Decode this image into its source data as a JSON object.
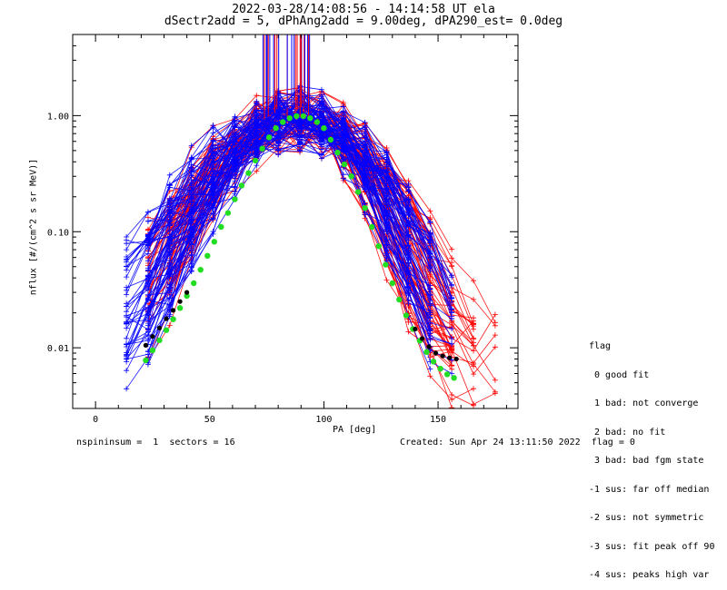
{
  "header": {
    "line1": "2022-03-28/14:08:56 - 14:14:58 UT ela",
    "line2": "dSectr2add = 5, dPhAng2add = 9.00deg, dPA290_est=   0.0deg"
  },
  "footer": {
    "left": "nspininsum =  1  sectors = 16",
    "right": "Created: Sun Apr 24 13:11:50 2022  flag = 0"
  },
  "flag_legend": {
    "title": "flag",
    "items": [
      " 0 good fit",
      " 1 bad: not converge",
      " 2 bad: no fit",
      " 3 bad: bad fgm state",
      "-1 sus: far off median",
      "-2 sus: not symmetric",
      "-3 sus: fit peak off 90",
      "-4 sus: peaks high var"
    ]
  },
  "colors": {
    "blue": "#0000ff",
    "red": "#ff0000",
    "green": "#22dd22",
    "black": "#000000"
  },
  "chart_data": {
    "type": "line",
    "scale_y": "log",
    "xlabel": "PA [deg]",
    "ylabel": "nflux [#/(cm^2 s sr MeV)]",
    "xlim": [
      -10,
      185
    ],
    "ylim": [
      0.003,
      5
    ],
    "x_ticks": [
      0,
      50,
      100,
      150
    ],
    "x_tick_labels": [
      "0",
      "50",
      "100",
      "150"
    ],
    "y_ticks": [
      0.01,
      0.1,
      1.0
    ],
    "y_tick_labels": [
      "0.01",
      "0.10",
      "1.00"
    ],
    "grid": false,
    "series": [
      {
        "color": "green",
        "x": [
          22,
          25,
          28,
          31,
          34,
          37,
          40,
          43,
          46,
          49,
          52,
          55,
          58,
          61,
          64,
          67,
          70,
          73,
          76,
          79,
          82,
          85,
          88,
          91,
          94,
          97,
          100,
          103,
          106,
          109,
          112,
          115,
          118,
          121,
          124,
          127,
          130,
          133,
          136,
          139,
          142,
          145,
          148,
          151,
          154,
          157
        ],
        "y": [
          0.0078,
          0.0095,
          0.0116,
          0.0142,
          0.0176,
          0.022,
          0.028,
          0.036,
          0.047,
          0.062,
          0.082,
          0.11,
          0.145,
          0.19,
          0.25,
          0.32,
          0.41,
          0.52,
          0.65,
          0.78,
          0.88,
          0.95,
          0.99,
          0.99,
          0.95,
          0.88,
          0.78,
          0.62,
          0.48,
          0.38,
          0.3,
          0.22,
          0.16,
          0.11,
          0.075,
          0.052,
          0.036,
          0.026,
          0.019,
          0.0145,
          0.0115,
          0.0092,
          0.0076,
          0.0066,
          0.0059,
          0.0055
        ]
      },
      {
        "color": "black",
        "x": [
          22,
          25,
          28,
          31,
          34,
          37,
          40,
          140,
          143,
          146,
          149,
          152,
          155,
          158
        ],
        "y": [
          0.0105,
          0.0125,
          0.0148,
          0.0178,
          0.021,
          0.025,
          0.03,
          0.0145,
          0.012,
          0.0102,
          0.009,
          0.0085,
          0.0082,
          0.008
        ]
      }
    ]
  }
}
